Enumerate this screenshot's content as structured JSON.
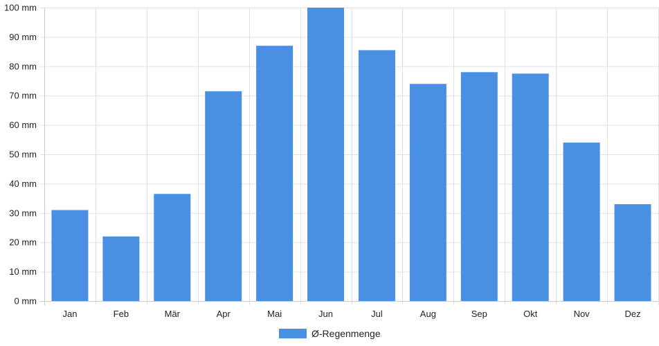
{
  "colors": {
    "bar": "#4a90e2",
    "grid": "#e2e2e2",
    "axis": "#cccccc",
    "text": "#222222"
  },
  "chart_data": {
    "type": "bar",
    "categories": [
      "Jan",
      "Feb",
      "Mär",
      "Apr",
      "Mai",
      "Jun",
      "Jul",
      "Aug",
      "Sep",
      "Okt",
      "Nov",
      "Dez"
    ],
    "series": [
      {
        "name": "Ø-Regenmenge",
        "values": [
          31,
          22,
          36.5,
          71.5,
          87,
          100,
          85.5,
          74,
          78,
          77.5,
          54,
          33
        ]
      }
    ],
    "y_unit": "mm",
    "ylim": [
      0,
      100
    ],
    "y_ticks": [
      0,
      10,
      20,
      30,
      40,
      50,
      60,
      70,
      80,
      90,
      100
    ],
    "y_tick_labels": [
      "0 mm",
      "10 mm",
      "20 mm",
      "30 mm",
      "40 mm",
      "50 mm",
      "60 mm",
      "70 mm",
      "80 mm",
      "90 mm",
      "100 mm"
    ],
    "grid": true,
    "legend_position": "bottom-center"
  }
}
